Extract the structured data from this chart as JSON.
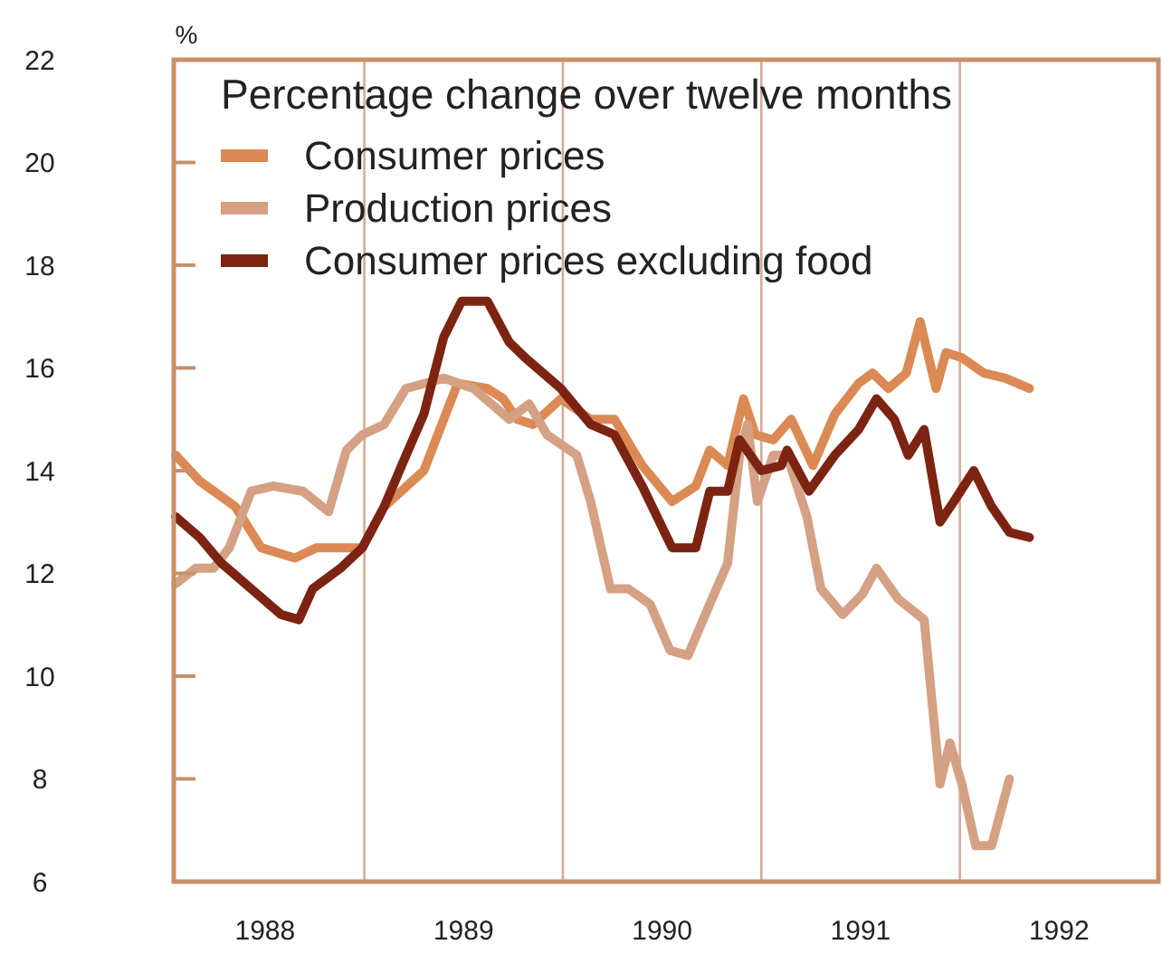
{
  "chart_data": {
    "type": "line",
    "ylabel": "%",
    "legend_title": "Percentage change over twelve months",
    "xlim": [
      1988.04,
      1993.0
    ],
    "xticks": [
      {
        "value": 1988.5,
        "label": "1988"
      },
      {
        "value": 1989.5,
        "label": "1989"
      },
      {
        "value": 1990.5,
        "label": "1990"
      },
      {
        "value": 1991.5,
        "label": "1991"
      },
      {
        "value": 1992.5,
        "label": "1992"
      }
    ],
    "ylim": [
      6,
      22
    ],
    "yticks": [
      6,
      8,
      10,
      12,
      14,
      16,
      18,
      20,
      22
    ],
    "ref_lines": [
      {
        "axis": "x",
        "value": 1989,
        "color": "#d4ab98"
      },
      {
        "axis": "x",
        "value": 1990,
        "color": "#d4ab98"
      },
      {
        "axis": "x",
        "value": 1991,
        "color": "#d4ab98"
      },
      {
        "axis": "x",
        "value": 1992,
        "color": "#d4ab98"
      }
    ],
    "legend": "top left",
    "line_style": "solid",
    "marker": "none",
    "series": [
      {
        "name": "Consumer prices",
        "color": "#db8a55",
        "x": [
          1988.05,
          1988.17,
          1988.35,
          1988.48,
          1988.65,
          1988.76,
          1988.99,
          1989.1,
          1989.3,
          1989.47,
          1989.62,
          1989.7,
          1989.77,
          1989.85,
          1989.99,
          1990.14,
          1990.26,
          1990.4,
          1990.55,
          1990.67,
          1990.74,
          1990.83,
          1990.91,
          1990.97,
          1991.06,
          1991.15,
          1991.26,
          1991.37,
          1991.49,
          1991.56,
          1991.64,
          1991.73,
          1991.8,
          1991.88,
          1991.93,
          1992.01,
          1992.12,
          1992.23,
          1992.35
        ],
        "values": [
          14.3,
          13.8,
          13.3,
          12.5,
          12.3,
          12.5,
          12.5,
          13.3,
          14.0,
          15.7,
          15.6,
          15.4,
          15.0,
          14.9,
          15.4,
          15.0,
          15.0,
          14.1,
          13.4,
          13.7,
          14.4,
          14.1,
          15.4,
          14.7,
          14.6,
          15.0,
          14.1,
          15.1,
          15.7,
          15.9,
          15.6,
          15.9,
          16.9,
          15.6,
          16.3,
          16.2,
          15.9,
          15.8,
          15.6
        ]
      },
      {
        "name": "Production prices",
        "color": "#d4a184",
        "x": [
          1988.05,
          1988.15,
          1988.24,
          1988.32,
          1988.43,
          1988.54,
          1988.69,
          1988.82,
          1988.91,
          1988.99,
          1989.1,
          1989.21,
          1989.4,
          1989.55,
          1989.73,
          1989.83,
          1989.92,
          1990.07,
          1990.14,
          1990.24,
          1990.33,
          1990.44,
          1990.54,
          1990.63,
          1990.74,
          1990.83,
          1990.89,
          1990.93,
          1990.98,
          1991.06,
          1991.13,
          1991.23,
          1991.3,
          1991.41,
          1991.51,
          1991.58,
          1991.69,
          1991.82,
          1991.9,
          1991.95,
          1992.01,
          1992.08,
          1992.16,
          1992.25
        ],
        "values": [
          11.8,
          12.1,
          12.1,
          12.5,
          13.6,
          13.7,
          13.6,
          13.2,
          14.4,
          14.7,
          14.9,
          15.6,
          15.8,
          15.6,
          15.0,
          15.3,
          14.7,
          14.3,
          13.4,
          11.7,
          11.7,
          11.4,
          10.5,
          10.4,
          11.4,
          12.2,
          14.3,
          14.9,
          13.4,
          14.3,
          14.3,
          13.1,
          11.7,
          11.2,
          11.6,
          12.1,
          11.5,
          11.1,
          7.9,
          8.7,
          7.9,
          6.7,
          6.7,
          8.0
        ]
      },
      {
        "name": "Consumer prices excluding food",
        "color": "#7c2312",
        "x": [
          1988.05,
          1988.17,
          1988.28,
          1988.43,
          1988.58,
          1988.67,
          1988.74,
          1988.88,
          1988.99,
          1989.1,
          1989.21,
          1989.3,
          1989.4,
          1989.49,
          1989.62,
          1989.73,
          1989.81,
          1989.99,
          1990.14,
          1990.26,
          1990.4,
          1990.55,
          1990.67,
          1990.74,
          1990.83,
          1990.89,
          1991.0,
          1991.1,
          1991.13,
          1991.24,
          1991.37,
          1991.49,
          1991.58,
          1991.67,
          1991.74,
          1991.82,
          1991.9,
          1991.97,
          1992.07,
          1992.16,
          1992.25,
          1992.35
        ],
        "values": [
          13.1,
          12.7,
          12.2,
          11.7,
          11.2,
          11.1,
          11.7,
          12.1,
          12.5,
          13.3,
          14.3,
          15.1,
          16.6,
          17.3,
          17.3,
          16.5,
          16.2,
          15.6,
          14.9,
          14.7,
          13.7,
          12.5,
          12.5,
          13.6,
          13.6,
          14.6,
          14.0,
          14.1,
          14.4,
          13.6,
          14.3,
          14.8,
          15.4,
          15.0,
          14.3,
          14.8,
          13.0,
          13.4,
          14.0,
          13.3,
          12.8,
          12.7
        ]
      }
    ]
  }
}
